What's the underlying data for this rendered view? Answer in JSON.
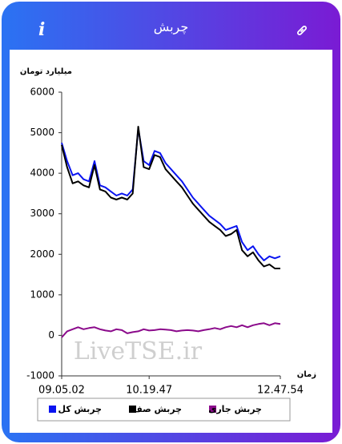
{
  "header": {
    "title": "چربش",
    "info": "i"
  },
  "chart_data": {
    "type": "line",
    "y_label": "میلیارد تومان",
    "x_label": "زمان",
    "watermark": "LiveTSE.ir",
    "categories": [
      "09.05.02",
      null,
      null,
      null,
      null,
      null,
      null,
      null,
      null,
      null,
      null,
      null,
      null,
      null,
      null,
      null,
      "10.19.47",
      null,
      null,
      null,
      null,
      null,
      null,
      null,
      null,
      null,
      null,
      null,
      null,
      null,
      null,
      null,
      null,
      null,
      null,
      null,
      null,
      null,
      null,
      null,
      "12.47.54"
    ],
    "series": [
      {
        "name": "چربش کل",
        "color": "#0a14f0",
        "values": [
          4750,
          4300,
          3950,
          4000,
          3850,
          3800,
          4300,
          3700,
          3650,
          3550,
          3450,
          3500,
          3450,
          3600,
          5100,
          4300,
          4200,
          4550,
          4500,
          4250,
          4100,
          3950,
          3800,
          3600,
          3400,
          3250,
          3100,
          2950,
          2850,
          2750,
          2600,
          2650,
          2700,
          2300,
          2100,
          2200,
          2000,
          1850,
          1950,
          1900,
          1950
        ]
      },
      {
        "name": "چربش صف",
        "color": "#000000",
        "values": [
          4700,
          4150,
          3750,
          3800,
          3700,
          3650,
          4200,
          3600,
          3550,
          3400,
          3350,
          3400,
          3350,
          3500,
          5150,
          4150,
          4100,
          4450,
          4400,
          4100,
          3950,
          3800,
          3650,
          3450,
          3250,
          3100,
          2950,
          2800,
          2700,
          2600,
          2450,
          2500,
          2600,
          2100,
          1950,
          2050,
          1850,
          1700,
          1750,
          1650,
          1650
        ]
      },
      {
        "name": "چربش جاری",
        "color": "#8b0a8b",
        "values": [
          -50,
          100,
          150,
          200,
          150,
          180,
          200,
          150,
          120,
          100,
          150,
          130,
          50,
          80,
          100,
          150,
          120,
          130,
          150,
          140,
          130,
          100,
          120,
          130,
          120,
          100,
          130,
          150,
          180,
          150,
          200,
          230,
          200,
          250,
          200,
          250,
          280,
          300,
          250,
          300,
          280
        ]
      }
    ],
    "ylim": [
      -1000,
      6000
    ],
    "yticks": [
      -1000,
      0,
      1000,
      2000,
      3000,
      4000,
      5000,
      6000
    ]
  }
}
